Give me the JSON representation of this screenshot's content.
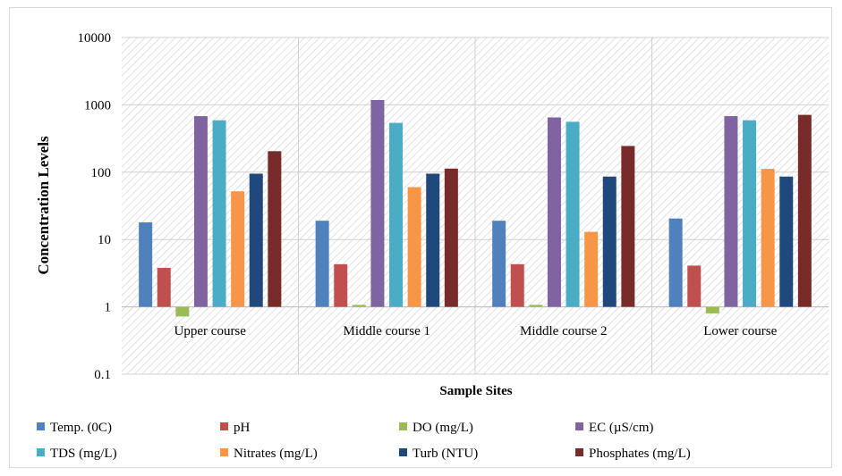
{
  "chart_data": {
    "type": "bar",
    "title": "",
    "xlabel": "Sample Sites",
    "ylabel": "Concentration Levels",
    "yscale": "log",
    "ylim": [
      0.1,
      10000
    ],
    "yticks": [
      "0.1",
      "1",
      "10",
      "100",
      "1000",
      "10000"
    ],
    "grid": "hatched plot area with vertical separators between categories",
    "legend_position": "bottom",
    "categories": [
      "Upper course",
      "Middle course 1",
      "Middle course 2",
      "Lower course"
    ],
    "series": [
      {
        "name": "Temp. (0C)",
        "color": "#4f81bd",
        "values": [
          18,
          19,
          19,
          20.5
        ]
      },
      {
        "name": "pH",
        "color": "#c0504d",
        "values": [
          3.8,
          4.3,
          4.3,
          4.1
        ]
      },
      {
        "name": "DO (mg/L)",
        "color": "#9bbb59",
        "values": [
          0.72,
          1.07,
          1.07,
          0.8
        ]
      },
      {
        "name": "EC (µS/cm)",
        "color": "#8064a2",
        "values": [
          680,
          1180,
          650,
          680
        ]
      },
      {
        "name": "TDS (mg/L)",
        "color": "#4bacc6",
        "values": [
          590,
          540,
          560,
          590
        ]
      },
      {
        "name": "Nitrates (mg/L)",
        "color": "#f79646",
        "values": [
          52,
          60,
          13,
          112
        ]
      },
      {
        "name": "Turb (NTU)",
        "color": "#1f497d",
        "values": [
          95,
          95,
          86,
          86
        ]
      },
      {
        "name": "Phosphates (mg/L)",
        "color": "#772c2a",
        "values": [
          205,
          113,
          245,
          710
        ]
      }
    ]
  }
}
